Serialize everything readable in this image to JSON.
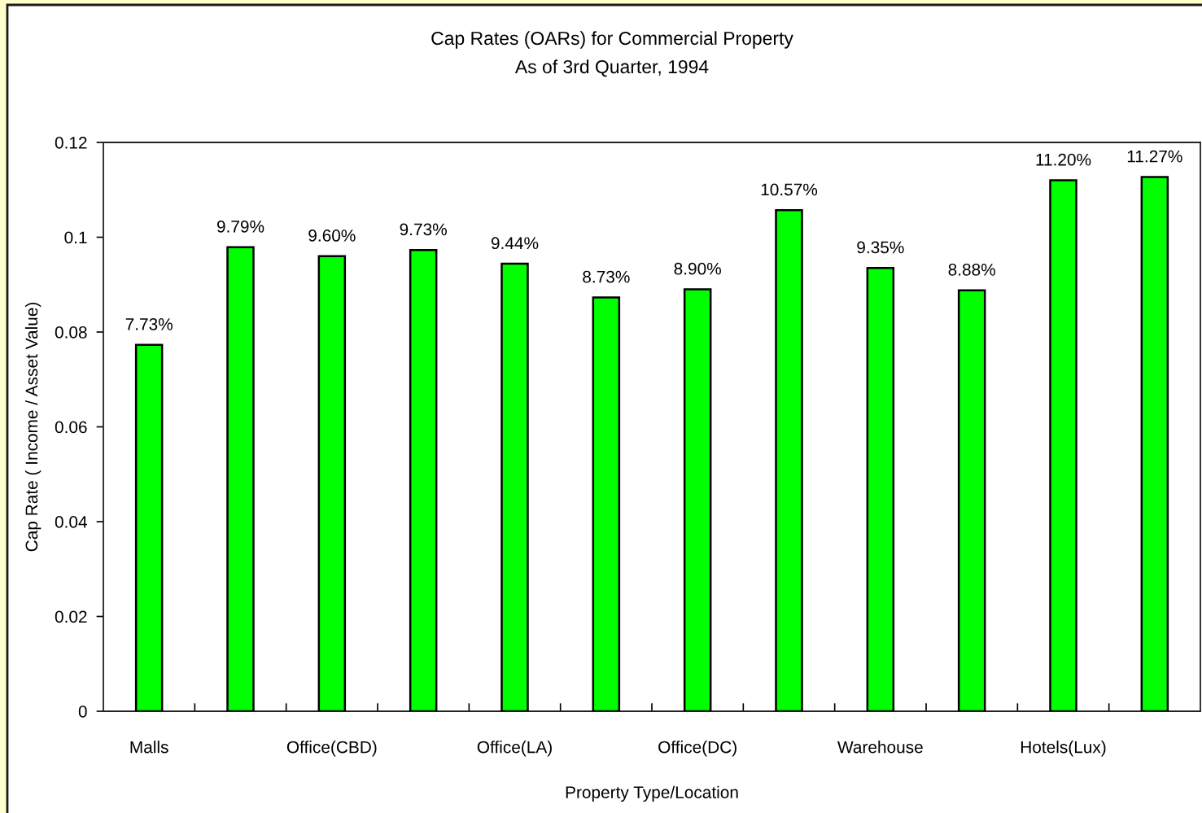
{
  "chart_data": {
    "type": "bar",
    "title": "Cap Rates (OARs) for Commercial Property",
    "subtitle": "As of 3rd Quarter, 1994",
    "xlabel": "Property Type/Location",
    "ylabel": "Cap Rate ( Income / Asset Value)",
    "categories": [
      "Malls",
      null,
      "Office(CBD)",
      null,
      "Office(LA)",
      null,
      "Office(DC)",
      null,
      "Warehouse",
      null,
      "Hotels(Lux)",
      null
    ],
    "values": [
      0.0773,
      0.0979,
      0.096,
      0.0973,
      0.0944,
      0.0873,
      0.089,
      0.1057,
      0.0935,
      0.0888,
      0.112,
      0.1127
    ],
    "value_labels": [
      "7.73%",
      "9.79%",
      "9.60%",
      "9.73%",
      "9.44%",
      "8.73%",
      "8.90%",
      "10.57%",
      "9.35%",
      "8.88%",
      "11.20%",
      "11.27%"
    ],
    "color": "#00ff00",
    "ylim": [
      0,
      0.12
    ],
    "yticks": [
      0,
      0.02,
      0.04,
      0.06,
      0.08,
      0.1,
      0.12
    ],
    "grid": false,
    "legend": false
  }
}
